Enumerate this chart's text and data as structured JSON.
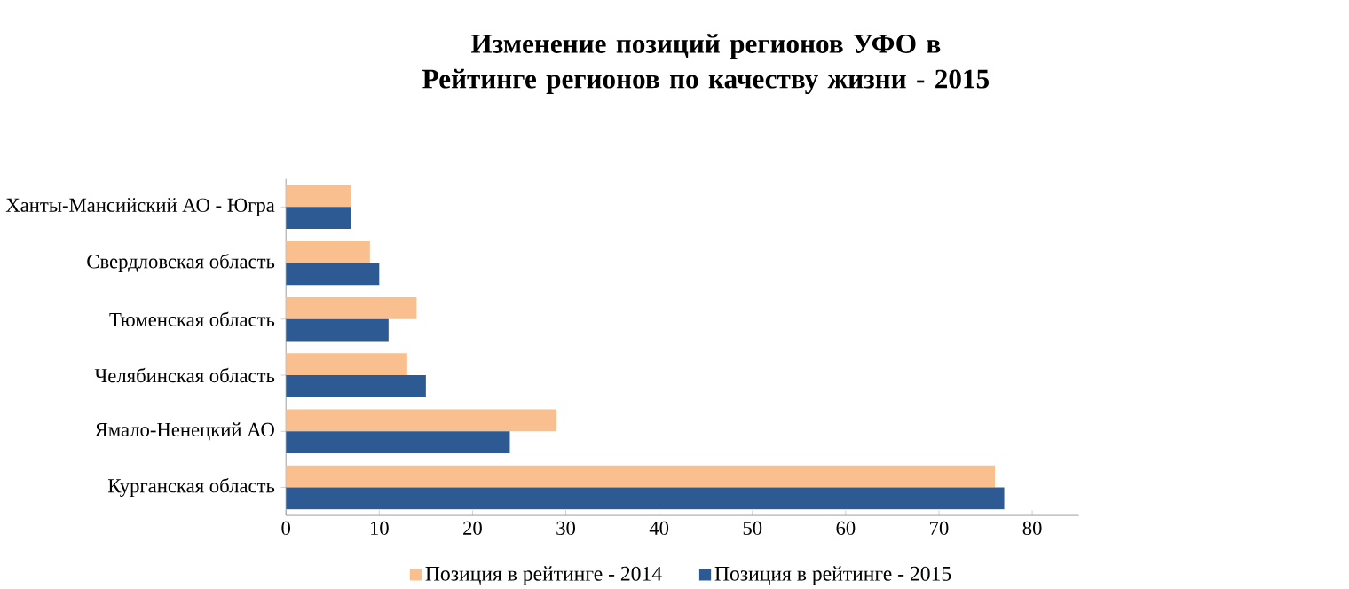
{
  "chart_data": {
    "type": "bar",
    "orientation": "horizontal",
    "title": "Изменение позиций регионов УФО в Рейтинге регионов по качеству жизни - 2015",
    "categories": [
      "Ханты-Мансийский АО - Югра",
      "Свердловская область",
      "Тюменская область",
      "Челябинская область",
      "Ямало-Ненецкий АО",
      "Курганская область"
    ],
    "series": [
      {
        "name": "Позиция в рейтинге - 2014",
        "color": "#f9bf8f",
        "values": [
          7,
          9,
          14,
          13,
          29,
          76
        ]
      },
      {
        "name": "Позиция в рейтинге - 2015",
        "color": "#2e5a94",
        "values": [
          7,
          10,
          11,
          15,
          24,
          77
        ]
      }
    ],
    "xlim": [
      0,
      85
    ],
    "xticks": [
      0,
      10,
      20,
      30,
      40,
      50,
      60,
      70,
      80
    ],
    "grid": false,
    "legend": "bottom"
  }
}
